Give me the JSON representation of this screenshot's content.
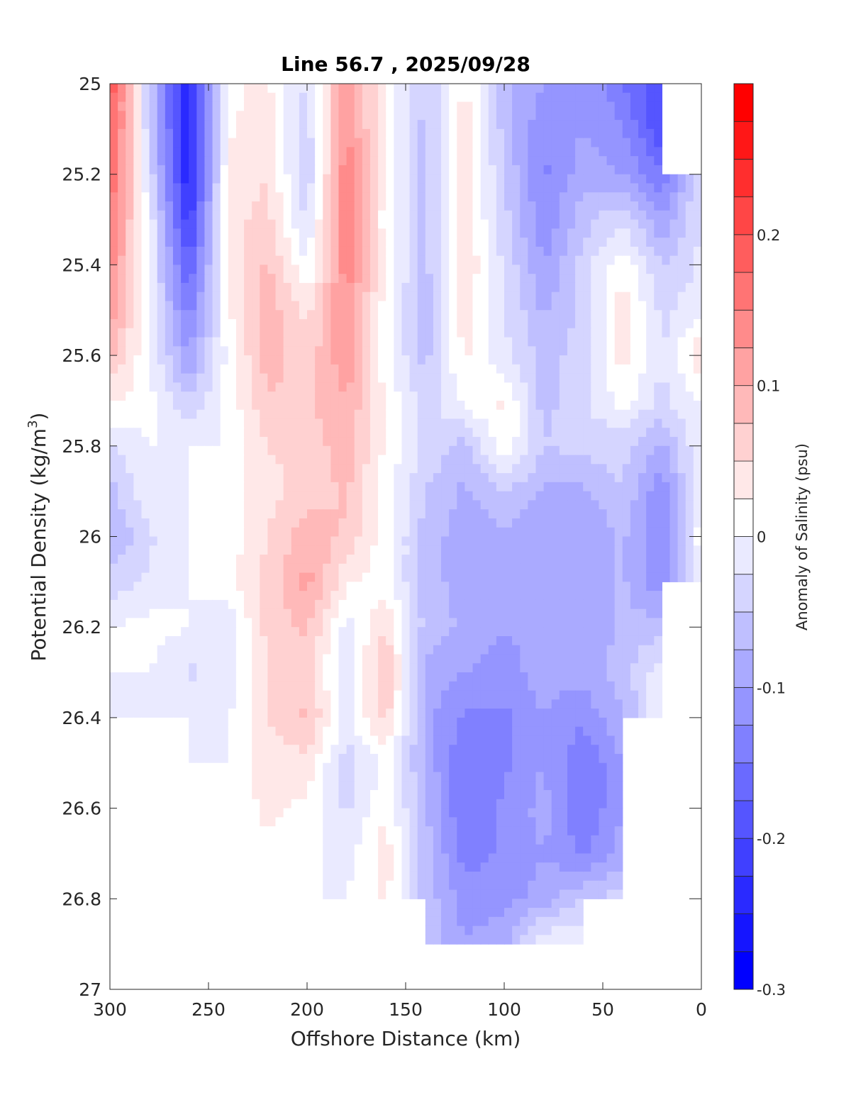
{
  "chart_data": {
    "type": "heatmap",
    "title": "Line 56.7 , 2025/09/28",
    "xlabel": "Offshore Distance (km)",
    "ylabel_main": "Potential Density (kg/m",
    "ylabel_sup": "3",
    "ylabel_close": ")",
    "colorbar_label": "Anomaly of Salinity (psu)",
    "xlim": [
      300,
      0
    ],
    "ylim": [
      25,
      27
    ],
    "clim": [
      -0.3,
      0.3
    ],
    "contour_step": 0.025,
    "x_ticks": [
      "300",
      "250",
      "200",
      "150",
      "100",
      "50",
      "0"
    ],
    "x_tick_values": [
      300,
      250,
      200,
      150,
      100,
      50,
      0
    ],
    "y_ticks": [
      "25",
      "25.2",
      "25.4",
      "25.6",
      "25.8",
      "26",
      "26.2",
      "26.4",
      "26.6",
      "26.8",
      "27"
    ],
    "y_tick_values": [
      25,
      25.2,
      25.4,
      25.6,
      25.8,
      26,
      26.2,
      26.4,
      26.6,
      26.8,
      27
    ],
    "colorbar_ticks": [
      "0.2",
      "0.1",
      "0",
      "-0.1",
      "-0.2",
      "-0.3"
    ],
    "colorbar_tick_values": [
      0.2,
      0.1,
      0,
      -0.1,
      -0.2,
      -0.3
    ],
    "colors": {
      "negative": "#0000ff",
      "positive": "#ff0000",
      "zero": "#ffffff"
    },
    "x": [
      300,
      280,
      260,
      240,
      220,
      200,
      180,
      160,
      140,
      120,
      100,
      80,
      60,
      40,
      20,
      0
    ],
    "y": [
      25.0,
      25.1,
      25.2,
      25.3,
      25.4,
      25.5,
      25.6,
      25.7,
      25.8,
      25.9,
      26.0,
      26.1,
      26.2,
      26.3,
      26.4,
      26.5,
      26.6,
      26.7,
      26.8,
      26.9
    ],
    "z": [
      [
        0.2,
        -0.05,
        -0.25,
        0.02,
        0.03,
        -0.03,
        0.12,
        0.02,
        -0.05,
        0.03,
        -0.07,
        -0.1,
        -0.1,
        -0.15,
        -0.2,
        null
      ],
      [
        0.2,
        -0.05,
        -0.25,
        0.02,
        0.04,
        -0.04,
        0.13,
        0.02,
        -0.06,
        0.04,
        -0.06,
        -0.12,
        -0.1,
        -0.12,
        -0.2,
        null
      ],
      [
        0.18,
        -0.03,
        -0.25,
        0.03,
        0.05,
        -0.05,
        0.15,
        0.02,
        -0.06,
        0.04,
        -0.05,
        -0.13,
        -0.09,
        -0.1,
        -0.15,
        -0.02
      ],
      [
        0.15,
        0,
        -0.22,
        0.04,
        0.06,
        -0.03,
        0.15,
        0.01,
        -0.06,
        0.04,
        -0.04,
        -0.12,
        -0.06,
        -0.03,
        -0.1,
        -0.02
      ],
      [
        0.14,
        0,
        -0.18,
        0.03,
        0.08,
        0,
        0.14,
        0.02,
        -0.06,
        0.05,
        -0.03,
        -0.1,
        -0.04,
        0.02,
        -0.05,
        -0.02
      ],
      [
        0.12,
        0,
        -0.14,
        0.02,
        0.09,
        0.04,
        0.13,
        0.01,
        -0.07,
        0.04,
        -0.02,
        -0.08,
        -0.04,
        0.04,
        -0.03,
        -0.01
      ],
      [
        0.08,
        0,
        -0.1,
        0.01,
        0.09,
        0.06,
        0.12,
        0.01,
        -0.06,
        0.03,
        -0.02,
        -0.06,
        -0.04,
        0.04,
        -0.03,
        0.05
      ],
      [
        0.03,
        0.01,
        -0.05,
        0.01,
        0.07,
        0.07,
        0.1,
        0.02,
        -0.04,
        0.01,
        0.03,
        -0.06,
        -0.03,
        0.01,
        -0.03,
        0
      ],
      [
        -0.03,
        0,
        0,
        0,
        0.05,
        0.06,
        0.09,
        0.02,
        -0.03,
        -0.06,
        0.02,
        -0.05,
        -0.04,
        -0.04,
        -0.08,
        0
      ],
      [
        -0.06,
        0,
        0,
        0.01,
        0.04,
        0.06,
        0.08,
        0.01,
        -0.05,
        -0.08,
        -0.05,
        -0.08,
        -0.08,
        -0.05,
        -0.12,
        0
      ],
      [
        -0.08,
        -0.03,
        0,
        0.01,
        0.05,
        0.09,
        0.07,
        0.01,
        -0.06,
        -0.09,
        -0.08,
        -0.09,
        -0.1,
        -0.07,
        -0.13,
        0.02
      ],
      [
        -0.04,
        -0.02,
        0,
        0.02,
        0.06,
        0.11,
        0.03,
        0.01,
        -0.06,
        -0.09,
        -0.08,
        -0.09,
        -0.1,
        -0.07,
        -0.12,
        0
      ],
      [
        0,
        0.01,
        0,
        -0.02,
        0.06,
        0.08,
        -0.01,
        0.05,
        -0.06,
        -0.08,
        -0.1,
        -0.09,
        -0.1,
        -0.07,
        -0.06,
        null
      ],
      [
        0,
        0,
        -0.03,
        -0.02,
        0.05,
        0.06,
        -0.02,
        0.08,
        -0.08,
        -0.1,
        -0.11,
        -0.09,
        -0.09,
        -0.06,
        -0.01,
        null
      ],
      [
        0,
        0,
        0,
        0,
        0.05,
        0.08,
        -0.01,
        0.06,
        -0.09,
        -0.13,
        -0.13,
        -0.1,
        -0.12,
        -0.08,
        0,
        null
      ],
      [
        0,
        0.01,
        0,
        0,
        0.04,
        0.04,
        -0.04,
        0.01,
        -0.08,
        -0.15,
        -0.13,
        -0.1,
        -0.15,
        -0.1,
        null,
        null
      ],
      [
        0,
        0.02,
        0,
        0.01,
        0.03,
        0.02,
        -0.03,
        0.02,
        -0.07,
        -0.15,
        -0.12,
        -0.09,
        -0.15,
        -0.1,
        null,
        null
      ],
      [
        0.02,
        0,
        0.02,
        0.02,
        0.02,
        0.01,
        -0.01,
        0.04,
        -0.06,
        -0.14,
        -0.12,
        -0.1,
        -0.13,
        -0.09,
        null,
        null
      ],
      [
        0.01,
        0.02,
        0.02,
        0.01,
        0,
        0,
        0,
        0.03,
        -0.06,
        -0.11,
        -0.11,
        -0.09,
        -0.05,
        -0.04,
        null,
        null
      ],
      [
        null,
        null,
        null,
        null,
        null,
        null,
        null,
        null,
        -0.05,
        -0.1,
        -0.08,
        0,
        0,
        null,
        null,
        null
      ]
    ]
  }
}
